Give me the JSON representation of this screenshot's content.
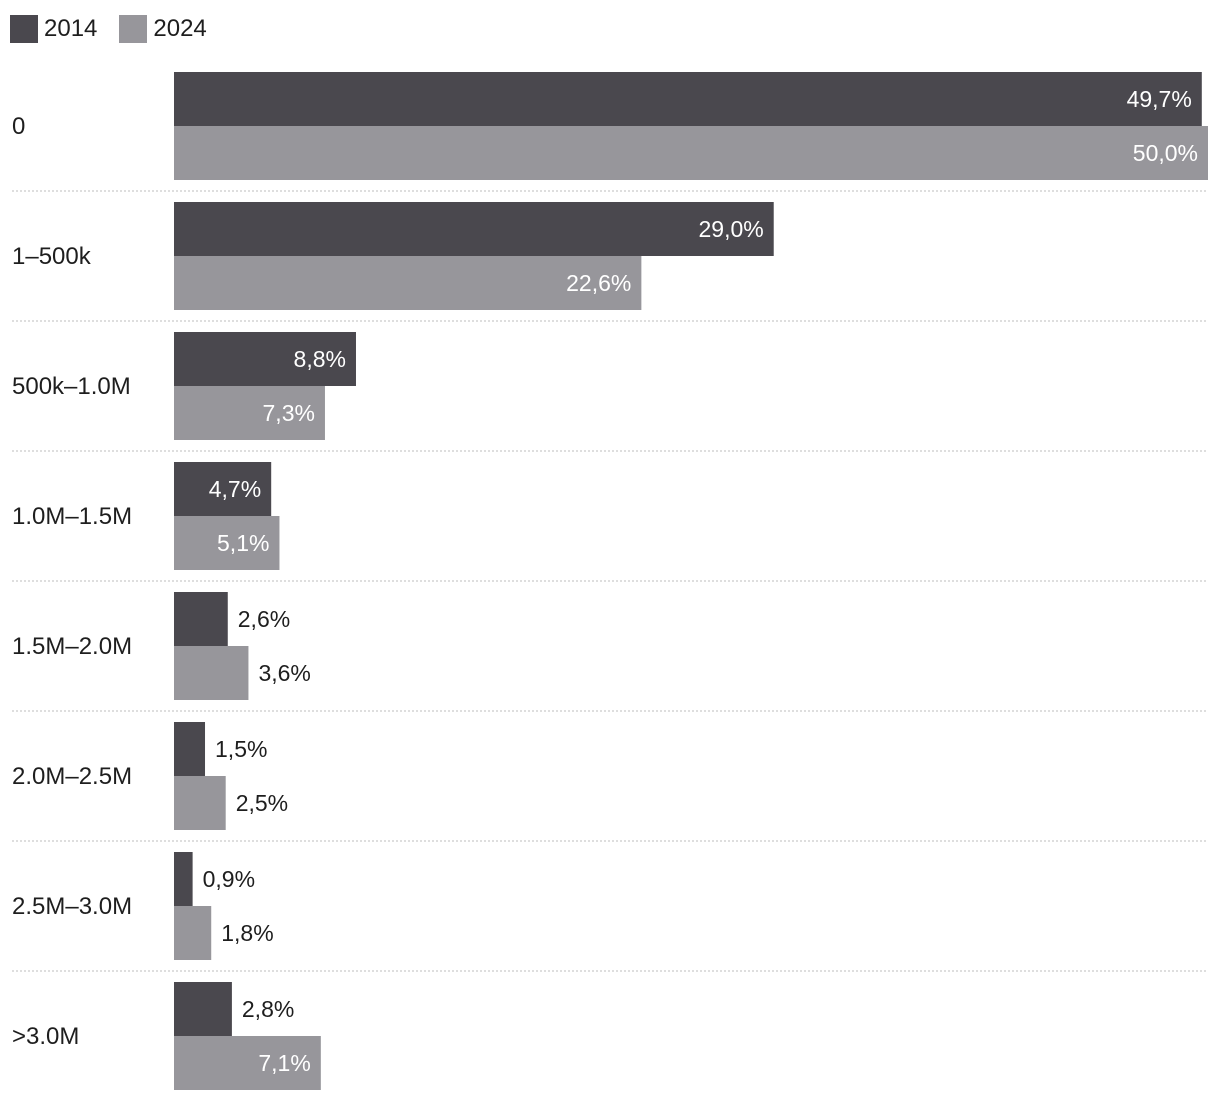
{
  "chart_data": {
    "type": "bar",
    "orientation": "horizontal",
    "categories": [
      "0",
      "1–500k",
      "500k–1.0M",
      "1.0M–1.5M",
      "1.5M–2.0M",
      "2.0M–2.5M",
      "2.5M–3.0M",
      ">3.0M"
    ],
    "series": [
      {
        "name": "2014",
        "color": "#4a484e",
        "values": [
          49.7,
          29.0,
          8.8,
          4.7,
          2.6,
          1.5,
          0.9,
          2.8
        ],
        "labels": [
          "49,7%",
          "29,0%",
          "8,8%",
          "4,7%",
          "2,6%",
          "1,5%",
          "0,9%",
          "2,8%"
        ]
      },
      {
        "name": "2024",
        "color": "#97969b",
        "values": [
          50.0,
          22.6,
          7.3,
          5.1,
          3.6,
          2.5,
          1.8,
          7.1
        ],
        "labels": [
          "50,0%",
          "22,6%",
          "7,3%",
          "5,1%",
          "3,6%",
          "2,5%",
          "1,8%",
          "7,1%"
        ]
      }
    ],
    "xlim": [
      0,
      50
    ],
    "title": "",
    "xlabel": "",
    "ylabel": "",
    "legend": "top-left",
    "grid": false
  }
}
